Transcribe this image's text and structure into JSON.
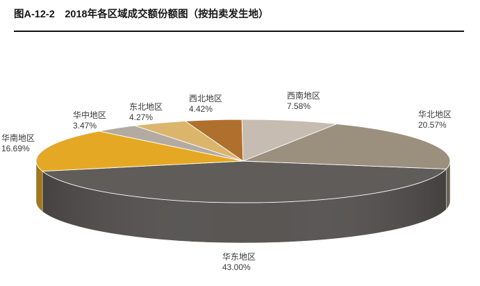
{
  "chart_data": {
    "type": "pie",
    "three_d": true,
    "title": "图A-12-2　2018年各区域成交额份额图（按拍卖发生地）",
    "categories": [
      "华东地区",
      "华南地区",
      "华中地区",
      "东北地区",
      "西北地区",
      "西南地区",
      "华北地区"
    ],
    "values": [
      43.0,
      16.69,
      3.47,
      4.27,
      4.42,
      7.58,
      20.57
    ],
    "value_labels": [
      "43.00%",
      "16.69%",
      "3.47%",
      "4.27%",
      "4.42%",
      "7.58%",
      "20.57%"
    ],
    "colors": [
      "#5f5c5a",
      "#e5a824",
      "#b3aba1",
      "#dbb56c",
      "#b0702d",
      "#c6bcb1",
      "#9b8f7e"
    ]
  }
}
